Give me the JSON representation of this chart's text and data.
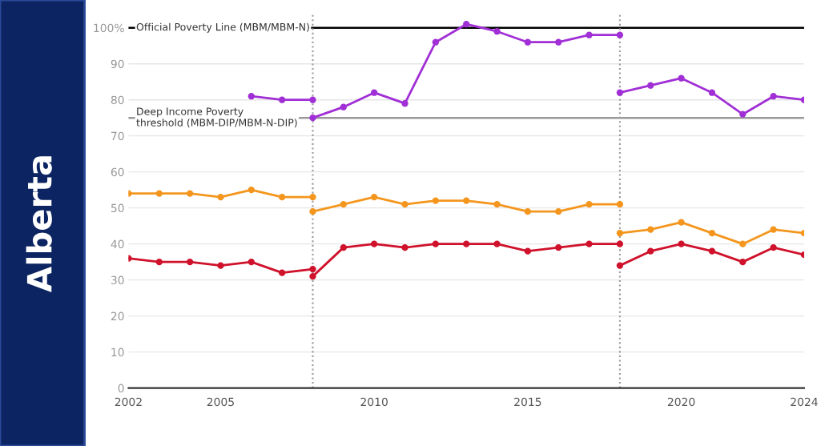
{
  "chart_data": {
    "type": "line",
    "annotations": [
      "Alberta"
    ],
    "xlim": [
      2002,
      2024
    ],
    "xticks": [
      2002,
      2005,
      2010,
      2015,
      2020,
      2024
    ],
    "ylim": [
      0,
      104
    ],
    "yticks": [
      0,
      10,
      20,
      30,
      40,
      50,
      60,
      70,
      80,
      90,
      {
        "value": 100,
        "label": "100%"
      }
    ],
    "grid": "y",
    "marker": "circle",
    "line_style": "solid",
    "legend": false,
    "ref_lines": [
      {
        "axis": "y",
        "value": 100,
        "label": "Official Poverty Line (MBM/MBM-N)",
        "color": "#000000",
        "line_style": "solid"
      },
      {
        "axis": "y",
        "value": 75,
        "label": "Deep Income Poverty\nthreshold (MBM-DIP/MBM-N-DIP)",
        "color": "#999999",
        "line_style": "solid"
      },
      {
        "axis": "x",
        "value": 2008,
        "color": "#999999",
        "line_style": "dotted"
      },
      {
        "axis": "x",
        "value": 2018,
        "color": "#999999",
        "line_style": "dotted"
      }
    ],
    "series": [
      {
        "color": "#a12fd6",
        "x": [
          2006,
          2007,
          2008
        ],
        "values": [
          81,
          80,
          80
        ]
      },
      {
        "color": "#a12fd6",
        "x": [
          2008,
          2009,
          2010,
          2011,
          2012,
          2013,
          2014,
          2015,
          2016,
          2017,
          2018
        ],
        "values": [
          75,
          78,
          82,
          79,
          96,
          101,
          99,
          96,
          96,
          98,
          98
        ]
      },
      {
        "color": "#a12fd6",
        "x": [
          2018,
          2019,
          2020,
          2021,
          2022,
          2023,
          2024
        ],
        "values": [
          82,
          84,
          86,
          82,
          76,
          81,
          80
        ]
      },
      {
        "color": "#f4961e",
        "x": [
          2002,
          2003,
          2004,
          2005,
          2006,
          2007,
          2008
        ],
        "values": [
          54,
          54,
          54,
          53,
          55,
          53,
          53
        ]
      },
      {
        "color": "#f4961e",
        "x": [
          2008,
          2009,
          2010,
          2011,
          2012,
          2013,
          2014,
          2015,
          2016,
          2017,
          2018
        ],
        "values": [
          49,
          51,
          53,
          51,
          52,
          52,
          51,
          49,
          49,
          51,
          51
        ]
      },
      {
        "color": "#f4961e",
        "x": [
          2018,
          2019,
          2020,
          2021,
          2022,
          2023,
          2024
        ],
        "values": [
          43,
          44,
          46,
          43,
          40,
          44,
          43
        ]
      },
      {
        "color": "#d0112b",
        "x": [
          2002,
          2003,
          2004,
          2005,
          2006,
          2007,
          2008
        ],
        "values": [
          36,
          35,
          35,
          34,
          35,
          32,
          33
        ]
      },
      {
        "color": "#d0112b",
        "x": [
          2008,
          2009,
          2010,
          2011,
          2012,
          2013,
          2014,
          2015,
          2016,
          2017,
          2018
        ],
        "values": [
          31,
          39,
          40,
          39,
          40,
          40,
          40,
          38,
          39,
          40,
          40
        ]
      },
      {
        "color": "#d0112b",
        "x": [
          2018,
          2019,
          2020,
          2021,
          2022,
          2023,
          2024
        ],
        "values": [
          34,
          38,
          40,
          38,
          35,
          39,
          37
        ]
      }
    ]
  }
}
